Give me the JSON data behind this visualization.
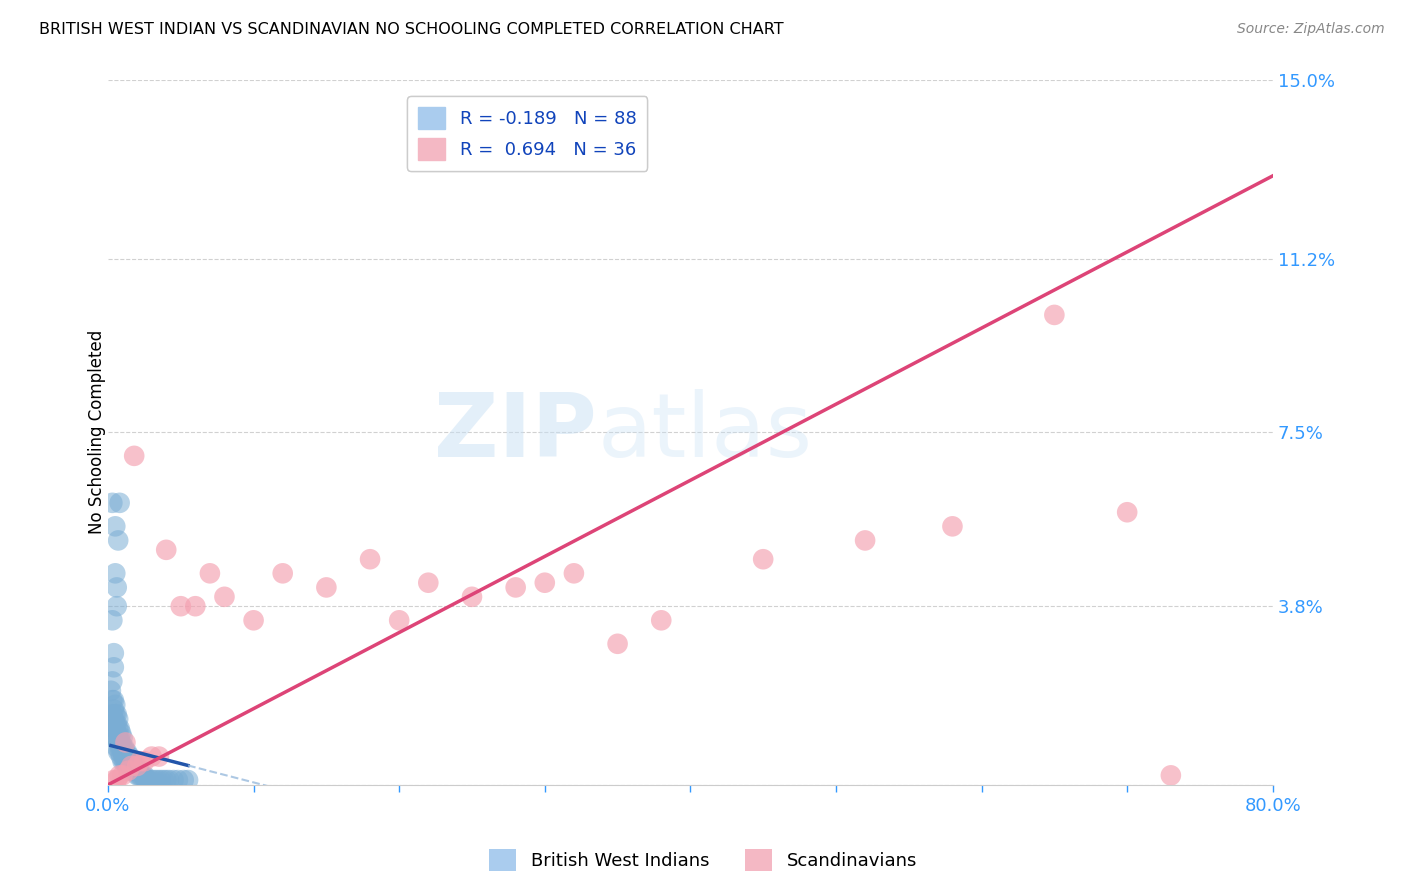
{
  "title": "BRITISH WEST INDIAN VS SCANDINAVIAN NO SCHOOLING COMPLETED CORRELATION CHART",
  "source": "Source: ZipAtlas.com",
  "ylabel": "No Schooling Completed",
  "xlim": [
    0.0,
    0.8
  ],
  "ylim": [
    0.0,
    0.15
  ],
  "ytick_vals": [
    0.0,
    0.038,
    0.075,
    0.112,
    0.15
  ],
  "ytick_labels": [
    "",
    "3.8%",
    "7.5%",
    "11.2%",
    "15.0%"
  ],
  "xtick_vals": [
    0.0,
    0.1,
    0.2,
    0.3,
    0.4,
    0.5,
    0.6,
    0.7,
    0.8
  ],
  "xtick_labels": [
    "0.0%",
    "",
    "",
    "",
    "",
    "",
    "",
    "",
    "80.0%"
  ],
  "grid_color": "#cccccc",
  "blue_color": "#7aadd4",
  "pink_color": "#f4a0b0",
  "blue_trend_color": "#2255aa",
  "pink_trend_color": "#dd4477",
  "blue_dash_color": "#99bbdd",
  "watermark_color": "#c8e0f4",
  "tick_label_color": "#3399ff",
  "legend_r1": "R = -0.189   N = 88",
  "legend_r2": "R =  0.694   N = 36",
  "legend_label1": "British West Indians",
  "legend_label2": "Scandinavians",
  "blue_scatter_x": [
    0.002,
    0.003,
    0.003,
    0.003,
    0.004,
    0.004,
    0.004,
    0.004,
    0.005,
    0.005,
    0.005,
    0.005,
    0.005,
    0.006,
    0.006,
    0.006,
    0.006,
    0.006,
    0.007,
    0.007,
    0.007,
    0.007,
    0.007,
    0.008,
    0.008,
    0.008,
    0.008,
    0.009,
    0.009,
    0.009,
    0.009,
    0.01,
    0.01,
    0.01,
    0.01,
    0.011,
    0.011,
    0.011,
    0.012,
    0.012,
    0.012,
    0.013,
    0.013,
    0.013,
    0.014,
    0.014,
    0.015,
    0.015,
    0.015,
    0.016,
    0.016,
    0.017,
    0.017,
    0.018,
    0.018,
    0.019,
    0.019,
    0.02,
    0.021,
    0.021,
    0.022,
    0.023,
    0.024,
    0.025,
    0.026,
    0.027,
    0.028,
    0.03,
    0.032,
    0.034,
    0.036,
    0.038,
    0.04,
    0.042,
    0.045,
    0.048,
    0.052,
    0.055,
    0.003,
    0.004,
    0.005,
    0.006,
    0.007,
    0.008,
    0.004,
    0.005,
    0.003,
    0.006
  ],
  "blue_scatter_y": [
    0.02,
    0.015,
    0.018,
    0.022,
    0.012,
    0.014,
    0.016,
    0.018,
    0.01,
    0.012,
    0.013,
    0.015,
    0.017,
    0.008,
    0.01,
    0.011,
    0.013,
    0.015,
    0.007,
    0.009,
    0.01,
    0.012,
    0.014,
    0.007,
    0.008,
    0.01,
    0.012,
    0.006,
    0.008,
    0.009,
    0.011,
    0.005,
    0.007,
    0.008,
    0.01,
    0.005,
    0.006,
    0.008,
    0.005,
    0.006,
    0.007,
    0.004,
    0.005,
    0.007,
    0.004,
    0.005,
    0.004,
    0.005,
    0.006,
    0.003,
    0.004,
    0.003,
    0.005,
    0.003,
    0.004,
    0.003,
    0.004,
    0.002,
    0.002,
    0.003,
    0.002,
    0.002,
    0.002,
    0.002,
    0.001,
    0.001,
    0.001,
    0.001,
    0.001,
    0.001,
    0.001,
    0.001,
    0.001,
    0.001,
    0.001,
    0.001,
    0.001,
    0.001,
    0.035,
    0.028,
    0.045,
    0.038,
    0.052,
    0.06,
    0.025,
    0.055,
    0.06,
    0.042
  ],
  "pink_scatter_x": [
    0.004,
    0.006,
    0.008,
    0.01,
    0.012,
    0.014,
    0.016,
    0.018,
    0.02,
    0.022,
    0.025,
    0.03,
    0.035,
    0.04,
    0.05,
    0.06,
    0.07,
    0.08,
    0.1,
    0.12,
    0.15,
    0.18,
    0.2,
    0.22,
    0.25,
    0.28,
    0.3,
    0.32,
    0.35,
    0.38,
    0.45,
    0.52,
    0.58,
    0.65,
    0.7,
    0.73
  ],
  "pink_scatter_y": [
    0.001,
    0.001,
    0.002,
    0.002,
    0.009,
    0.003,
    0.004,
    0.07,
    0.004,
    0.005,
    0.005,
    0.006,
    0.006,
    0.05,
    0.038,
    0.038,
    0.045,
    0.04,
    0.035,
    0.045,
    0.042,
    0.048,
    0.035,
    0.043,
    0.04,
    0.042,
    0.043,
    0.045,
    0.03,
    0.035,
    0.048,
    0.052,
    0.055,
    0.1,
    0.058,
    0.002
  ],
  "blue_trend_x": [
    0.002,
    0.06
  ],
  "blue_trend_slope": -0.08,
  "blue_trend_intercept": 0.0085,
  "pink_trend_x_start": 0.0,
  "pink_trend_x_end": 0.8,
  "pink_trend_slope": 0.162,
  "pink_trend_intercept": 0.0
}
